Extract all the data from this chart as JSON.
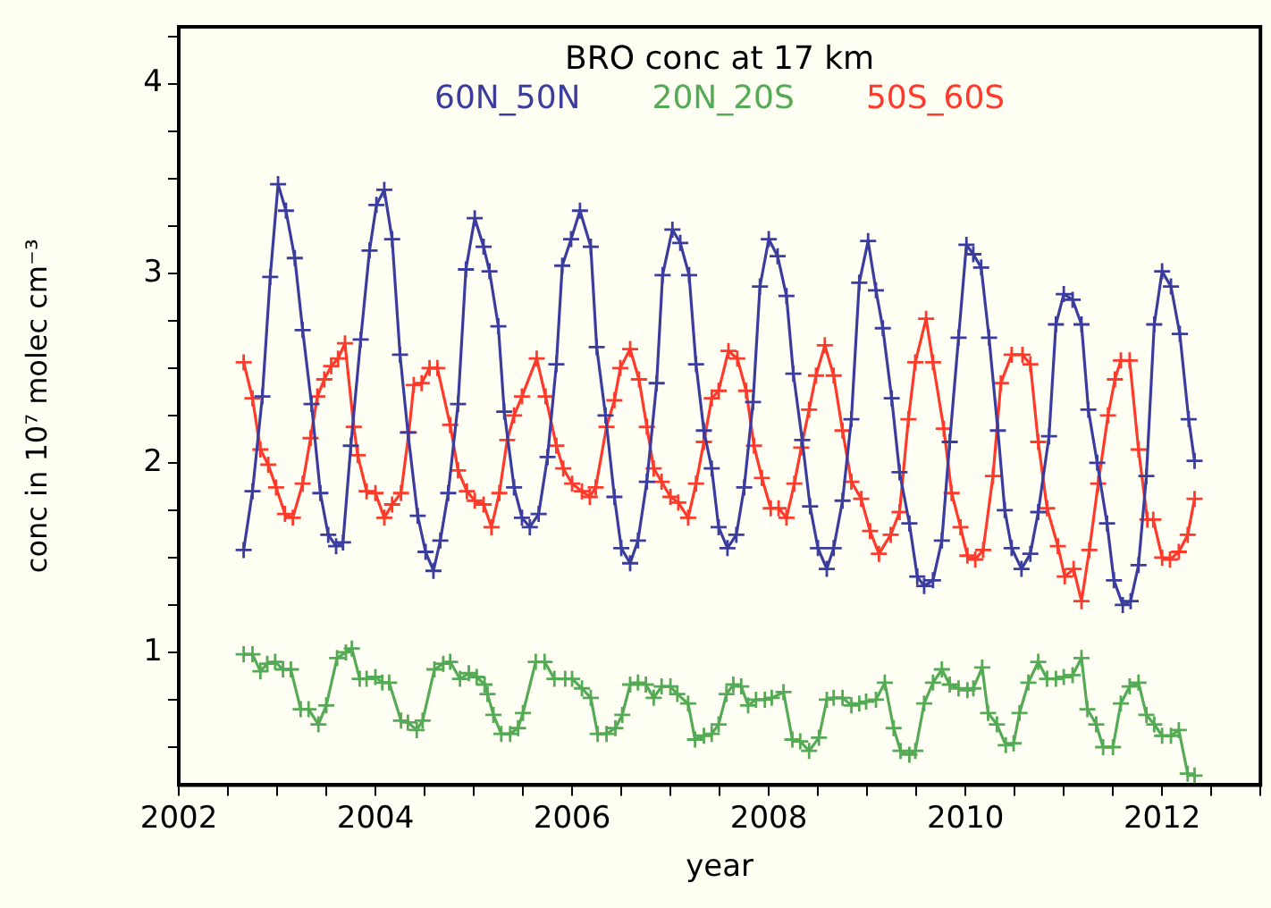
{
  "chart_data": {
    "type": "line",
    "title": "BRO conc at 17 km",
    "xlabel": "year",
    "ylabel": "conc in 10⁷ molec cm⁻³",
    "xlim": [
      2002,
      2013
    ],
    "xticks": [
      2002,
      {
        "value": 2002.5,
        "label": null
      },
      {
        "value": 2003,
        "label": null
      },
      {
        "value": 2003.5,
        "label": null
      },
      2004,
      {
        "value": 2004.5,
        "label": null
      },
      {
        "value": 2005,
        "label": null
      },
      {
        "value": 2005.5,
        "label": null
      },
      2006,
      {
        "value": 2006.5,
        "label": null
      },
      {
        "value": 2007,
        "label": null
      },
      {
        "value": 2007.5,
        "label": null
      },
      2008,
      {
        "value": 2008.5,
        "label": null
      },
      {
        "value": 2009,
        "label": null
      },
      {
        "value": 2009.5,
        "label": null
      },
      2010,
      {
        "value": 2010.5,
        "label": null
      },
      {
        "value": 2011,
        "label": null
      },
      {
        "value": 2011.5,
        "label": null
      },
      2012,
      {
        "value": 2012.5,
        "label": null
      },
      {
        "value": 2013,
        "label": null
      }
    ],
    "ylim": [
      0.3,
      4.3
    ],
    "yticks": [
      {
        "value": 0.5,
        "label": null
      },
      {
        "value": 0.75,
        "label": null
      },
      1,
      {
        "value": 1.25,
        "label": null
      },
      {
        "value": 1.5,
        "label": null
      },
      {
        "value": 1.75,
        "label": null
      },
      2,
      {
        "value": 2.25,
        "label": null
      },
      {
        "value": 2.5,
        "label": null
      },
      {
        "value": 2.75,
        "label": null
      },
      3,
      {
        "value": 3.25,
        "label": null
      },
      {
        "value": 3.5,
        "label": null
      },
      {
        "value": 3.75,
        "label": null
      },
      4,
      {
        "value": 4.25,
        "label": null
      }
    ],
    "grid": false,
    "legend": "top",
    "marker": "cross",
    "line_style": "solid",
    "series": [
      {
        "name": "60N_50N",
        "color": "#3b3d9e",
        "x": [
          2002.66,
          2002.75,
          2002.85,
          2002.93,
          2003.01,
          2003.09,
          2003.18,
          2003.26,
          2003.35,
          2003.44,
          2003.52,
          2003.6,
          2003.67,
          2003.75,
          2003.85,
          2003.94,
          2004.01,
          2004.09,
          2004.17,
          2004.25,
          2004.33,
          2004.43,
          2004.51,
          2004.59,
          2004.66,
          2004.74,
          2004.84,
          2004.92,
          2005.01,
          2005.1,
          2005.16,
          2005.25,
          2005.31,
          2005.41,
          2005.49,
          2005.57,
          2005.66,
          2005.75,
          2005.84,
          2005.9,
          2005.99,
          2006.08,
          2006.19,
          2006.25,
          2006.34,
          2006.43,
          2006.5,
          2006.59,
          2006.67,
          2006.76,
          2006.86,
          2006.92,
          2007.02,
          2007.1,
          2007.19,
          2007.26,
          2007.34,
          2007.42,
          2007.49,
          2007.58,
          2007.67,
          2007.75,
          2007.84,
          2007.91,
          2008.0,
          2008.09,
          2008.18,
          2008.25,
          2008.34,
          2008.42,
          2008.5,
          2008.59,
          2008.66,
          2008.75,
          2008.84,
          2008.92,
          2009.01,
          2009.09,
          2009.16,
          2009.25,
          2009.33,
          2009.43,
          2009.51,
          2009.58,
          2009.67,
          2009.76,
          2009.84,
          2009.93,
          2010.01,
          2010.08,
          2010.16,
          2010.24,
          2010.33,
          2010.4,
          2010.47,
          2010.57,
          2010.66,
          2010.74,
          2010.85,
          2010.92,
          2011.0,
          2011.09,
          2011.18,
          2011.25,
          2011.34,
          2011.44,
          2011.51,
          2011.6,
          2011.68,
          2011.76,
          2011.84,
          2011.92,
          2012.0,
          2012.09,
          2012.18,
          2012.27,
          2012.33
        ],
        "values": [
          1.54,
          1.85,
          2.35,
          2.98,
          3.47,
          3.33,
          3.08,
          2.7,
          2.31,
          1.84,
          1.62,
          1.56,
          1.58,
          2.09,
          2.65,
          3.12,
          3.36,
          3.44,
          3.18,
          2.57,
          2.16,
          1.72,
          1.53,
          1.43,
          1.59,
          1.84,
          2.31,
          3.02,
          3.29,
          3.14,
          3.01,
          2.72,
          2.27,
          1.87,
          1.71,
          1.66,
          1.73,
          2.03,
          2.52,
          3.04,
          3.18,
          3.33,
          3.14,
          2.61,
          2.25,
          1.82,
          1.55,
          1.47,
          1.59,
          1.9,
          2.42,
          2.99,
          3.23,
          3.16,
          2.99,
          2.52,
          2.17,
          1.97,
          1.66,
          1.55,
          1.62,
          1.87,
          2.32,
          2.93,
          3.18,
          3.09,
          2.88,
          2.47,
          2.12,
          1.77,
          1.55,
          1.44,
          1.55,
          1.8,
          2.23,
          2.95,
          3.17,
          2.91,
          2.71,
          2.34,
          1.95,
          1.68,
          1.4,
          1.35,
          1.38,
          1.59,
          2.11,
          2.66,
          3.15,
          3.1,
          3.03,
          2.66,
          2.17,
          1.75,
          1.55,
          1.44,
          1.52,
          1.74,
          2.14,
          2.73,
          2.89,
          2.86,
          2.73,
          2.28,
          2.0,
          1.68,
          1.38,
          1.25,
          1.27,
          1.46,
          1.93,
          2.73,
          3.01,
          2.93,
          2.68,
          2.23,
          2.01
        ]
      },
      {
        "name": "20N_20S",
        "color": "#55aa55",
        "x": [
          2002.66,
          2002.75,
          2002.83,
          2002.9,
          2002.98,
          2003.06,
          2003.14,
          2003.24,
          2003.32,
          2003.42,
          2003.5,
          2003.61,
          2003.7,
          2003.76,
          2003.84,
          2003.91,
          2004.0,
          2004.07,
          2004.14,
          2004.26,
          2004.33,
          2004.42,
          2004.48,
          2004.6,
          2004.69,
          2004.76,
          2004.86,
          2004.95,
          2005.03,
          2005.11,
          2005.14,
          2005.2,
          2005.28,
          2005.37,
          2005.45,
          2005.5,
          2005.63,
          2005.72,
          2005.82,
          2005.93,
          2006.0,
          2006.1,
          2006.19,
          2006.26,
          2006.35,
          2006.44,
          2006.51,
          2006.59,
          2006.67,
          2006.75,
          2006.83,
          2006.91,
          2007.0,
          2007.07,
          2007.18,
          2007.25,
          2007.34,
          2007.42,
          2007.49,
          2007.57,
          2007.64,
          2007.72,
          2007.79,
          2007.87,
          2007.96,
          2008.03,
          2008.15,
          2008.24,
          2008.32,
          2008.41,
          2008.51,
          2008.59,
          2008.66,
          2008.75,
          2008.84,
          2008.92,
          2008.99,
          2009.09,
          2009.18,
          2009.27,
          2009.34,
          2009.43,
          2009.49,
          2009.58,
          2009.67,
          2009.76,
          2009.84,
          2009.93,
          2010.02,
          2010.08,
          2010.17,
          2010.23,
          2010.32,
          2010.41,
          2010.49,
          2010.55,
          2010.64,
          2010.74,
          2010.83,
          2010.92,
          2011.0,
          2011.09,
          2011.18,
          2011.24,
          2011.33,
          2011.4,
          2011.5,
          2011.58,
          2011.67,
          2011.76,
          2011.84,
          2011.92,
          2012.0,
          2012.09,
          2012.17,
          2012.26,
          2012.33
        ],
        "values": [
          0.99,
          0.99,
          0.9,
          0.94,
          0.95,
          0.91,
          0.91,
          0.7,
          0.7,
          0.62,
          0.72,
          0.97,
          1.0,
          1.02,
          0.86,
          0.86,
          0.87,
          0.84,
          0.84,
          0.64,
          0.63,
          0.59,
          0.64,
          0.91,
          0.94,
          0.95,
          0.86,
          0.89,
          0.87,
          0.83,
          0.78,
          0.67,
          0.57,
          0.57,
          0.6,
          0.68,
          0.95,
          0.95,
          0.86,
          0.86,
          0.86,
          0.81,
          0.76,
          0.57,
          0.57,
          0.6,
          0.67,
          0.83,
          0.84,
          0.83,
          0.76,
          0.82,
          0.82,
          0.78,
          0.73,
          0.54,
          0.56,
          0.57,
          0.62,
          0.78,
          0.83,
          0.82,
          0.72,
          0.75,
          0.75,
          0.76,
          0.79,
          0.54,
          0.53,
          0.48,
          0.55,
          0.75,
          0.76,
          0.76,
          0.72,
          0.73,
          0.74,
          0.75,
          0.84,
          0.6,
          0.48,
          0.46,
          0.48,
          0.73,
          0.84,
          0.91,
          0.83,
          0.81,
          0.8,
          0.81,
          0.92,
          0.68,
          0.62,
          0.51,
          0.52,
          0.68,
          0.84,
          0.95,
          0.86,
          0.86,
          0.87,
          0.88,
          0.97,
          0.7,
          0.62,
          0.5,
          0.5,
          0.73,
          0.82,
          0.84,
          0.67,
          0.62,
          0.56,
          0.56,
          0.59,
          0.36,
          0.35
        ]
      },
      {
        "name": "50S_60S",
        "color": "#ff3a2a",
        "x": [
          2002.66,
          2002.75,
          2002.83,
          2002.91,
          2002.99,
          2003.08,
          2003.16,
          2003.26,
          2003.34,
          2003.41,
          2003.48,
          2003.55,
          2003.62,
          2003.69,
          2003.78,
          2003.82,
          2003.91,
          2004.0,
          2004.09,
          2004.17,
          2004.26,
          2004.34,
          2004.39,
          2004.47,
          2004.55,
          2004.63,
          2004.76,
          2004.84,
          2004.93,
          2005.01,
          2005.1,
          2005.18,
          2005.26,
          2005.34,
          2005.41,
          2005.49,
          2005.64,
          2005.73,
          2005.84,
          2005.91,
          2006.0,
          2006.1,
          2006.18,
          2006.24,
          2006.35,
          2006.43,
          2006.49,
          2006.59,
          2006.68,
          2006.76,
          2006.83,
          2006.91,
          2007.0,
          2007.08,
          2007.18,
          2007.26,
          2007.34,
          2007.42,
          2007.49,
          2007.59,
          2007.68,
          2007.77,
          2007.85,
          2007.93,
          2008.02,
          2008.1,
          2008.18,
          2008.26,
          2008.33,
          2008.41,
          2008.48,
          2008.57,
          2008.66,
          2008.75,
          2008.84,
          2008.94,
          2009.03,
          2009.12,
          2009.24,
          2009.33,
          2009.42,
          2009.49,
          2009.6,
          2009.67,
          2009.78,
          2009.86,
          2009.95,
          2010.02,
          2010.1,
          2010.18,
          2010.28,
          2010.36,
          2010.47,
          2010.58,
          2010.66,
          2010.74,
          2010.83,
          2010.94,
          2011.01,
          2011.1,
          2011.18,
          2011.26,
          2011.35,
          2011.45,
          2011.52,
          2011.58,
          2011.67,
          2011.76,
          2011.85,
          2011.91,
          2012.0,
          2012.08,
          2012.17,
          2012.26,
          2012.33
        ],
        "values": [
          2.53,
          2.34,
          2.07,
          1.99,
          1.87,
          1.73,
          1.71,
          1.89,
          2.13,
          2.35,
          2.44,
          2.51,
          2.55,
          2.63,
          2.19,
          2.04,
          1.85,
          1.84,
          1.71,
          1.78,
          1.84,
          2.16,
          2.41,
          2.42,
          2.5,
          2.5,
          2.2,
          1.96,
          1.85,
          1.8,
          1.78,
          1.66,
          1.84,
          2.12,
          2.25,
          2.35,
          2.55,
          2.35,
          2.09,
          1.97,
          1.89,
          1.85,
          1.82,
          1.87,
          2.19,
          2.33,
          2.5,
          2.6,
          2.44,
          2.19,
          1.97,
          1.9,
          1.82,
          1.79,
          1.71,
          1.89,
          2.11,
          2.34,
          2.38,
          2.59,
          2.55,
          2.38,
          2.09,
          1.92,
          1.76,
          1.76,
          1.71,
          1.89,
          2.08,
          2.28,
          2.46,
          2.62,
          2.46,
          2.17,
          1.9,
          1.81,
          1.64,
          1.52,
          1.62,
          1.74,
          2.23,
          2.53,
          2.76,
          2.53,
          2.18,
          1.84,
          1.66,
          1.51,
          1.49,
          1.54,
          1.93,
          2.42,
          2.57,
          2.57,
          2.52,
          2.11,
          1.76,
          1.56,
          1.4,
          1.44,
          1.27,
          1.54,
          1.89,
          2.25,
          2.44,
          2.54,
          2.54,
          2.07,
          1.7,
          1.7,
          1.5,
          1.49,
          1.53,
          1.62,
          1.81
        ]
      }
    ]
  }
}
